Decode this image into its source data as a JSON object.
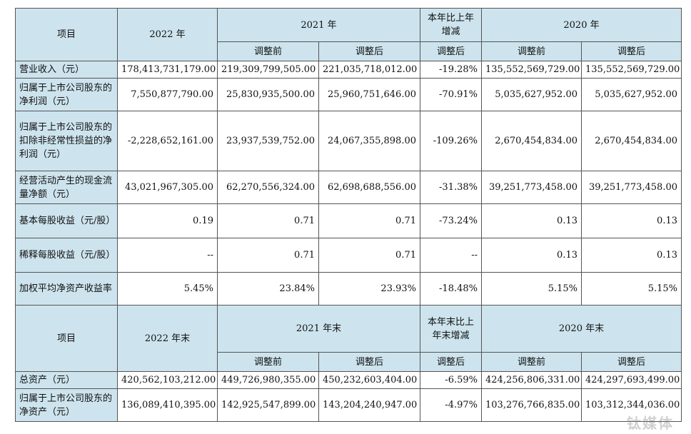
{
  "header1": {
    "item": "项目",
    "y2022": "2022 年",
    "y2021": "2021 年",
    "change": "本年比上年增减",
    "y2020": "2020 年",
    "before": "调整前",
    "after": "调整后"
  },
  "rows1": [
    {
      "label": "营业收入（元）",
      "v2022": "178,413,731,179.00",
      "v2021b": "219,309,799,505.00",
      "v2021a": "221,035,718,012.00",
      "chg": "-19.28%",
      "v2020b": "135,552,569,729.00",
      "v2020a": "135,552,569,729.00"
    },
    {
      "label": "归属于上市公司股东的净利润（元）",
      "v2022": "7,550,877,790.00",
      "v2021b": "25,830,935,500.00",
      "v2021a": "25,960,751,646.00",
      "chg": "-70.91%",
      "v2020b": "5,035,627,952.00",
      "v2020a": "5,035,627,952.00"
    },
    {
      "label": "归属于上市公司股东的扣除非经常性损益的净利润（元）",
      "v2022": "-2,228,652,161.00",
      "v2021b": "23,937,539,752.00",
      "v2021a": "24,067,355,898.00",
      "chg": "-109.26%",
      "v2020b": "2,670,454,834.00",
      "v2020a": "2,670,454,834.00"
    },
    {
      "label": "经营活动产生的现金流量净额（元）",
      "v2022": "43,021,967,305.00",
      "v2021b": "62,270,556,324.00",
      "v2021a": "62,698,688,556.00",
      "chg": "-31.38%",
      "v2020b": "39,251,773,458.00",
      "v2020a": "39,251,773,458.00"
    },
    {
      "label": "基本每股收益（元/股）",
      "v2022": "0.19",
      "v2021b": "0.71",
      "v2021a": "0.71",
      "chg": "-73.24%",
      "v2020b": "0.13",
      "v2020a": "0.13"
    },
    {
      "label": "稀释每股收益（元/股）",
      "v2022": "--",
      "v2021b": "0.71",
      "v2021a": "0.71",
      "chg": "--",
      "v2020b": "0.13",
      "v2020a": "0.13"
    },
    {
      "label": "加权平均净资产收益率",
      "v2022": "5.45%",
      "v2021b": "23.84%",
      "v2021a": "23.93%",
      "chg": "-18.48%",
      "v2020b": "5.15%",
      "v2020a": "5.15%"
    }
  ],
  "header2": {
    "item": "项目",
    "y2022": "2022 年末",
    "y2021": "2021 年末",
    "change": "本年末比上年末增减",
    "y2020": "2020 年末",
    "before": "调整前",
    "after": "调整后"
  },
  "rows2": [
    {
      "label": "总资产（元）",
      "v2022": "420,562,103,212.00",
      "v2021b": "449,726,980,355.00",
      "v2021a": "450,232,603,404.00",
      "chg": "-6.59%",
      "v2020b": "424,256,806,331.00",
      "v2020a": "424,297,693,499.00"
    },
    {
      "label": "归属于上市公司股东的净资产（元）",
      "v2022": "136,089,410,395.00",
      "v2021b": "142,925,547,899.00",
      "v2021a": "143,204,240,947.00",
      "chg": "-4.97%",
      "v2020b": "103,276,766,835.00",
      "v2020a": "103,312,344,036.00"
    }
  ],
  "watermark": "钛媒体"
}
